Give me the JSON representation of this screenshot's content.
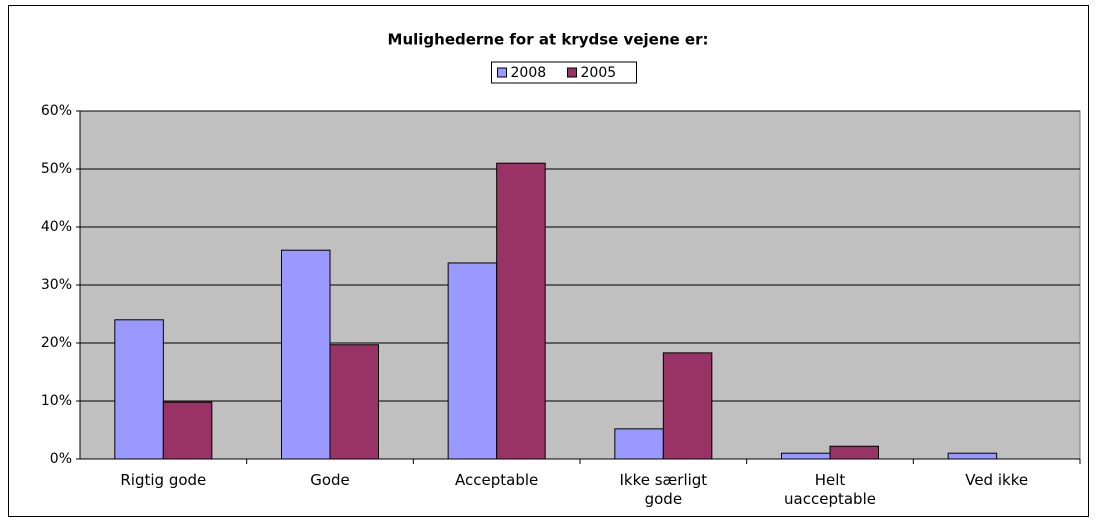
{
  "chart_data": {
    "type": "bar",
    "title": "Mulighederne for at krydse vejene er:",
    "categories": [
      "Rigtig gode",
      "Gode",
      "Acceptable",
      "Ikke særligt gode",
      "Helt uacceptable",
      "Ved ikke"
    ],
    "series": [
      {
        "name": "2008",
        "color": "#9999ff",
        "values": [
          24.0,
          36.0,
          33.8,
          5.2,
          1.0,
          1.0
        ]
      },
      {
        "name": "2005",
        "color": "#993366",
        "values": [
          9.8,
          19.7,
          51.0,
          18.3,
          2.2,
          0
        ]
      }
    ],
    "ylim": [
      0,
      60
    ],
    "yticks": [
      {
        "value": 0,
        "label": "0%"
      },
      {
        "value": 10,
        "label": "10%"
      },
      {
        "value": 20,
        "label": "20%"
      },
      {
        "value": 30,
        "label": "30%"
      },
      {
        "value": 40,
        "label": "40%"
      },
      {
        "value": 50,
        "label": "50%"
      },
      {
        "value": 60,
        "label": "60%"
      }
    ],
    "grid": true,
    "legend": "top"
  }
}
